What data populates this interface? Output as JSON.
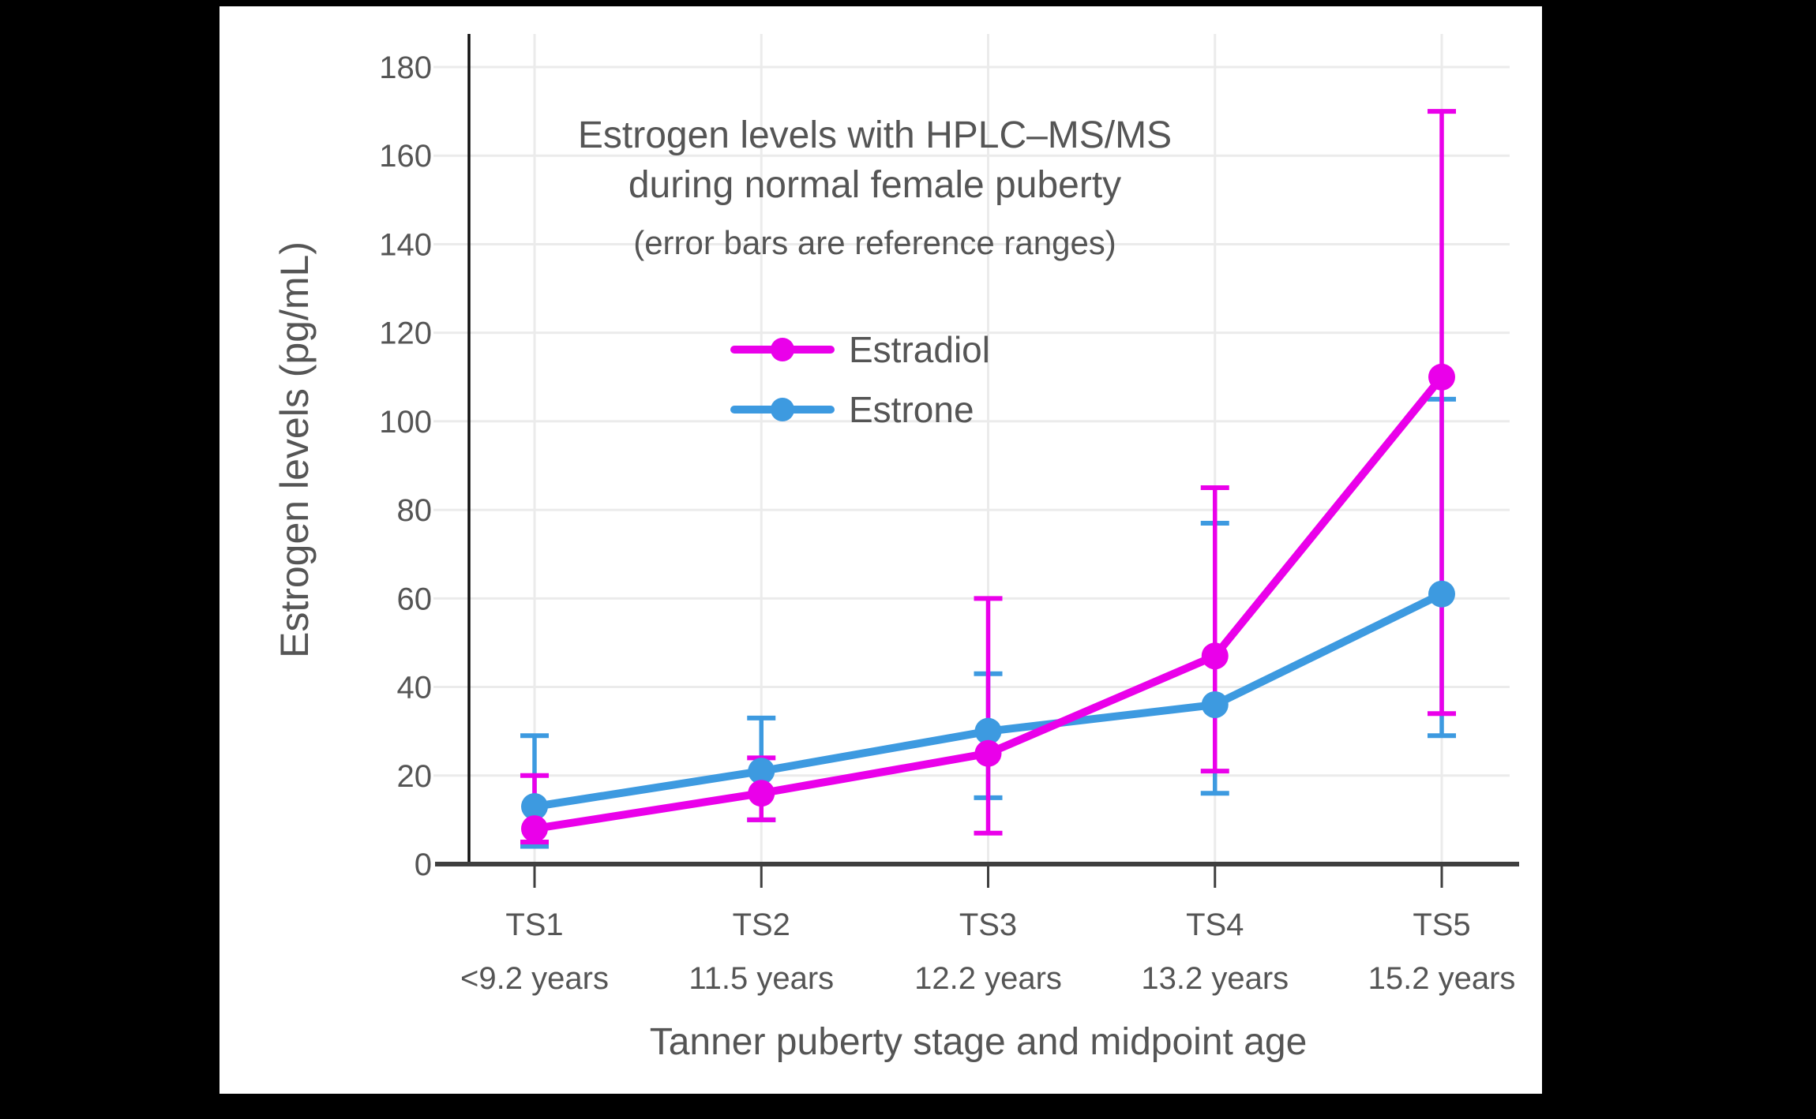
{
  "chart_data": {
    "type": "line",
    "title_line1": "Estrogen levels with HPLC–MS/MS",
    "title_line2": "during normal female puberty",
    "subtitle": "(error bars are reference ranges)",
    "xlabel": "Tanner puberty stage and midpoint age",
    "ylabel": "Estrogen levels (pg/mL)",
    "categories": [
      "TS1",
      "TS2",
      "TS3",
      "TS4",
      "TS5"
    ],
    "category_sublabels": [
      "<9.2 years",
      "11.5 years",
      "12.2 years",
      "13.2 years",
      "15.2 years"
    ],
    "y_ticks": [
      0,
      20,
      40,
      60,
      80,
      100,
      120,
      140,
      160,
      180
    ],
    "ylim": [
      0,
      187
    ],
    "grid": true,
    "legend_position": "inside upper-middle",
    "series": [
      {
        "name": "Estradiol",
        "color": "#ea00ea",
        "values": [
          8,
          16,
          25,
          47,
          110
        ],
        "error_low": [
          5,
          10,
          7,
          21,
          34
        ],
        "error_high": [
          20,
          24,
          60,
          85,
          170
        ]
      },
      {
        "name": "Estrone",
        "color": "#3d9ae0",
        "values": [
          13,
          21,
          30,
          36,
          61
        ],
        "error_low": [
          4,
          10,
          15,
          16,
          29
        ],
        "error_high": [
          29,
          33,
          43,
          77,
          105
        ]
      }
    ]
  },
  "colors": {
    "background": "#000000",
    "panel": "#ffffff",
    "text": "#555555",
    "gridline": "#ebebeb",
    "x_axis_line": "#3f3f3f",
    "y_axis_line": "#111111",
    "estradiol": "#ea00ea",
    "estrone": "#3d9ae0"
  }
}
